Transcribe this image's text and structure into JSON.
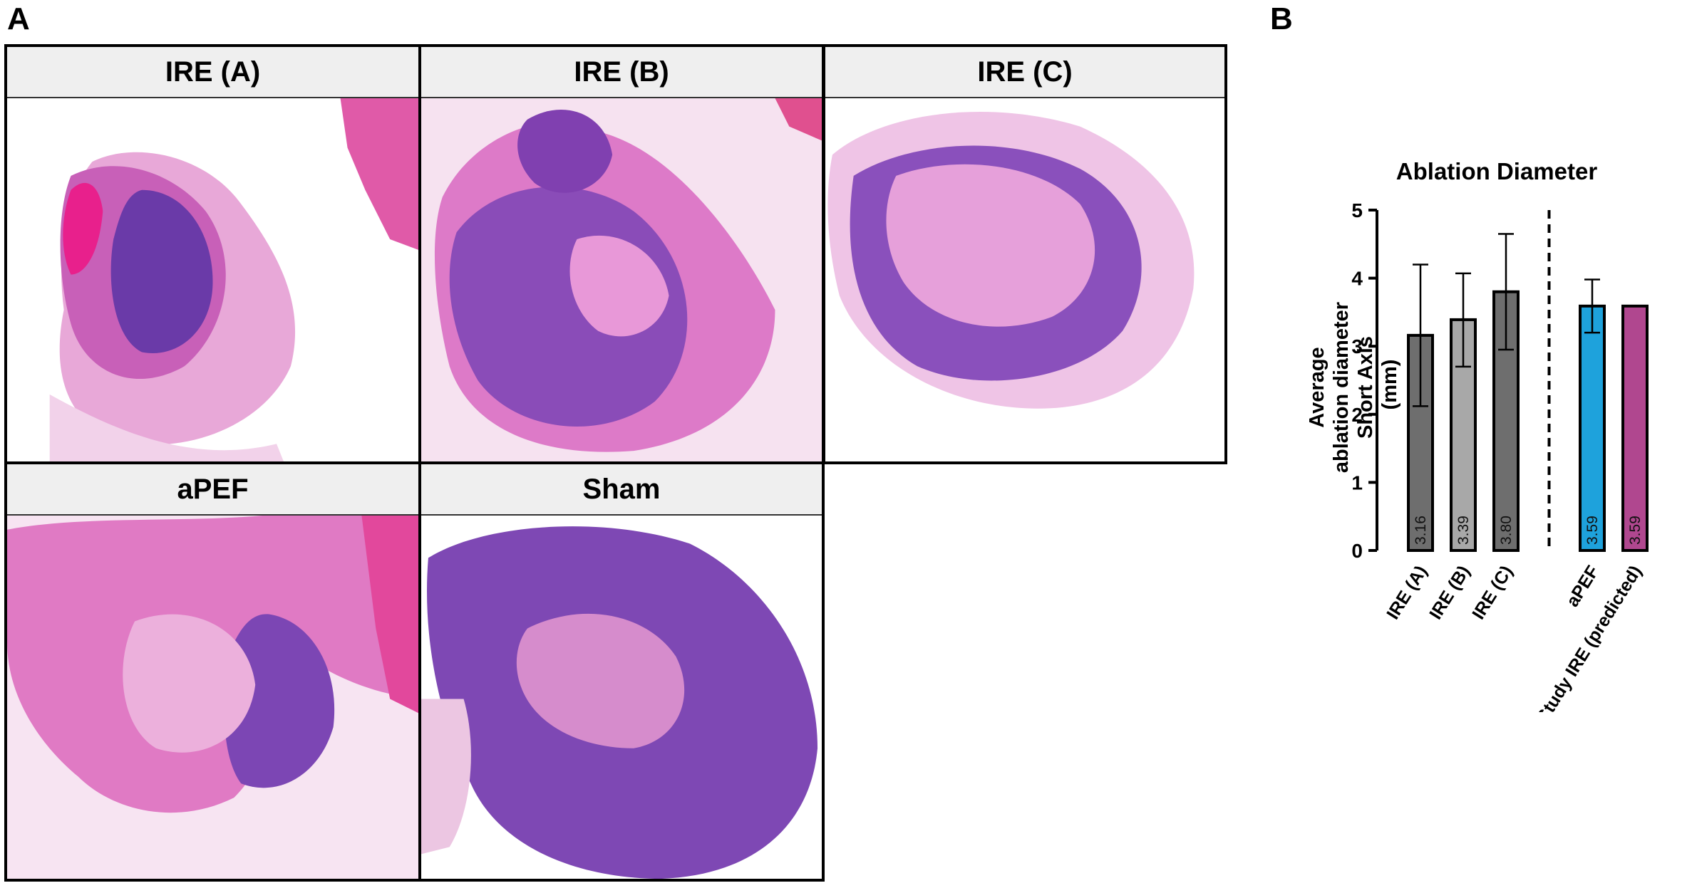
{
  "panel_a": {
    "letter": "A",
    "tiles": [
      {
        "label": "IRE (A)"
      },
      {
        "label": "IRE (B)"
      },
      {
        "label": "IRE (C)"
      },
      {
        "label": "aPEF"
      },
      {
        "label": "Sham"
      }
    ]
  },
  "panel_b": {
    "letter": "B"
  },
  "chart_data": {
    "type": "bar",
    "title": "Ablation Diameter",
    "ylabel_lines": [
      "Average",
      "ablation diameter",
      "Short Axis",
      "(mm)"
    ],
    "ylim": [
      0,
      5
    ],
    "yticks": [
      0,
      1,
      2,
      3,
      4,
      5
    ],
    "categories": [
      "IRE (A)",
      "IRE (B)",
      "IRE (C)",
      "aPEF",
      "Study IRE (predicted)"
    ],
    "values": [
      3.16,
      3.39,
      3.8,
      3.59,
      3.59
    ],
    "value_labels": [
      "3.16",
      "3.39",
      "3.80",
      "3.59",
      "3.59"
    ],
    "error_low": [
      2.12,
      2.7,
      2.95,
      3.2,
      null
    ],
    "error_high": [
      4.2,
      4.07,
      4.65,
      3.98,
      null
    ],
    "colors": [
      "#6e6e6e",
      "#a8a8a8",
      "#6e6e6e",
      "#1ea2dc",
      "#b0478f"
    ],
    "separator_after_index": 2,
    "grid": false,
    "legend": "none"
  }
}
